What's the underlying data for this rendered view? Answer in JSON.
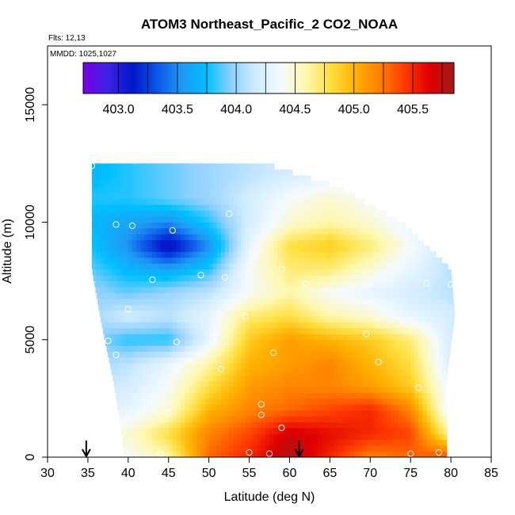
{
  "chart_data": {
    "type": "heatmap",
    "title": "ATOM3 Northeast_Pacific_2 CO2_NOAA",
    "flights_note": "Flts: 12,13",
    "mmdd_note": "MMDD: 1025,1027",
    "xlabel": "Latitude (deg N)",
    "ylabel": "Altitude (m)",
    "xlim": [
      30,
      85
    ],
    "ylim": [
      0,
      17500
    ],
    "xticks": [
      "30",
      "35",
      "40",
      "45",
      "50",
      "55",
      "60",
      "65",
      "70",
      "75",
      "80",
      "85"
    ],
    "yticks": [
      "0",
      "5000",
      "10000",
      "15000"
    ],
    "colorbar": {
      "min": 402.7,
      "max": 405.85,
      "ticks": [
        "403.0",
        "403.5",
        "404.0",
        "404.5",
        "405.0",
        "405.5"
      ],
      "colors": [
        "#7a00e6",
        "#3b22e6",
        "#0017c8",
        "#0b56e8",
        "#1f9af5",
        "#00c0ff",
        "#8fd1ff",
        "#d0ecff",
        "#f4faff",
        "#fff8b0",
        "#ffe040",
        "#ffb200",
        "#ff8000",
        "#ff3a00",
        "#e00000",
        "#a31a1a"
      ]
    },
    "arrows": [
      {
        "lat": 34.8,
        "label": "↓"
      },
      {
        "lat": 61.2,
        "label": "↓"
      }
    ],
    "latitudes": [
      35,
      40,
      45,
      50,
      55,
      60,
      65,
      70,
      75,
      80
    ],
    "altitudes": [
      0,
      1000,
      2000,
      3000,
      4000,
      5000,
      6000,
      7000,
      8000,
      9000,
      10000,
      11000,
      12000
    ],
    "values": [
      [
        404.5,
        404.4,
        404.6,
        405.3,
        405.5,
        405.8,
        405.5,
        405.2,
        405.3,
        405.4
      ],
      [
        404.4,
        404.5,
        404.8,
        405.2,
        405.4,
        405.7,
        405.6,
        405.5,
        405.4,
        404.6
      ],
      [
        404.2,
        404.3,
        404.5,
        405.0,
        405.2,
        405.3,
        405.4,
        405.5,
        405.2,
        404.3
      ],
      [
        404.1,
        404.2,
        404.4,
        404.8,
        405.1,
        405.2,
        405.2,
        405.1,
        404.9,
        404.3
      ],
      [
        404.0,
        404.1,
        404.3,
        404.6,
        405.0,
        405.1,
        405.2,
        405.0,
        404.8,
        404.2
      ],
      [
        404.0,
        403.8,
        403.8,
        404.3,
        404.9,
        405.1,
        405.0,
        404.9,
        404.7,
        404.2
      ],
      [
        404.0,
        404.2,
        404.1,
        404.3,
        404.7,
        404.8,
        404.6,
        404.5,
        404.3,
        404.2
      ],
      [
        404.0,
        403.9,
        404.0,
        404.1,
        404.4,
        404.6,
        404.4,
        404.3,
        404.2,
        404.1
      ],
      [
        403.9,
        403.7,
        403.6,
        403.8,
        404.4,
        404.7,
        404.7,
        404.5,
        404.3,
        404.1
      ],
      [
        403.8,
        403.5,
        403.0,
        403.5,
        404.3,
        404.8,
        404.9,
        404.7,
        404.4,
        404.1
      ],
      [
        403.7,
        403.6,
        403.5,
        403.8,
        404.2,
        404.5,
        404.6,
        404.5,
        404.3,
        404.1
      ],
      [
        403.8,
        403.8,
        403.9,
        404.0,
        404.2,
        404.4,
        404.5,
        404.4,
        404.3,
        404.1
      ],
      [
        403.7,
        403.8,
        403.9,
        404.0,
        404.1,
        404.2,
        404.3,
        404.3,
        404.2,
        404.1
      ]
    ],
    "coverage": [
      {
        "alt": 0,
        "lat_min": 39.5,
        "lat_max": 79.5
      },
      {
        "alt": 1500,
        "lat_min": 39.0,
        "lat_max": 79.5
      },
      {
        "alt": 3500,
        "lat_min": 38.0,
        "lat_max": 79.5
      },
      {
        "alt": 6000,
        "lat_min": 36.5,
        "lat_max": 80.5
      },
      {
        "alt": 8000,
        "lat_min": 35.5,
        "lat_max": 80.0
      },
      {
        "alt": 10000,
        "lat_min": 35.5,
        "lat_max": 74.0
      },
      {
        "alt": 11500,
        "lat_min": 35.5,
        "lat_max": 66.0
      },
      {
        "alt": 12500,
        "lat_min": 35.5,
        "lat_max": 57.0
      }
    ],
    "sample_points": [
      [
        35.5,
        12400
      ],
      [
        38.5,
        9900
      ],
      [
        40.5,
        9850
      ],
      [
        45.5,
        9650
      ],
      [
        52.5,
        10350
      ],
      [
        71.0,
        10350
      ],
      [
        43.0,
        7550
      ],
      [
        49.0,
        7750
      ],
      [
        52.0,
        7650
      ],
      [
        59.0,
        8000
      ],
      [
        62.0,
        7400
      ],
      [
        77.0,
        7400
      ],
      [
        80.0,
        7350
      ],
      [
        40.0,
        6300
      ],
      [
        54.5,
        6000
      ],
      [
        75.0,
        5700
      ],
      [
        37.5,
        4950
      ],
      [
        46.0,
        4900
      ],
      [
        50.5,
        5150
      ],
      [
        69.5,
        5250
      ],
      [
        38.5,
        4350
      ],
      [
        58.0,
        4450
      ],
      [
        71.0,
        4050
      ],
      [
        51.5,
        3750
      ],
      [
        56.5,
        2250
      ],
      [
        76.0,
        2950
      ],
      [
        40.0,
        1700
      ],
      [
        45.0,
        1900
      ],
      [
        56.5,
        1800
      ],
      [
        79.5,
        1850
      ],
      [
        59.0,
        1250
      ],
      [
        39.5,
        200
      ],
      [
        44.0,
        150
      ],
      [
        55.0,
        200
      ],
      [
        57.5,
        150
      ],
      [
        75.0,
        150
      ],
      [
        78.5,
        200
      ]
    ]
  }
}
